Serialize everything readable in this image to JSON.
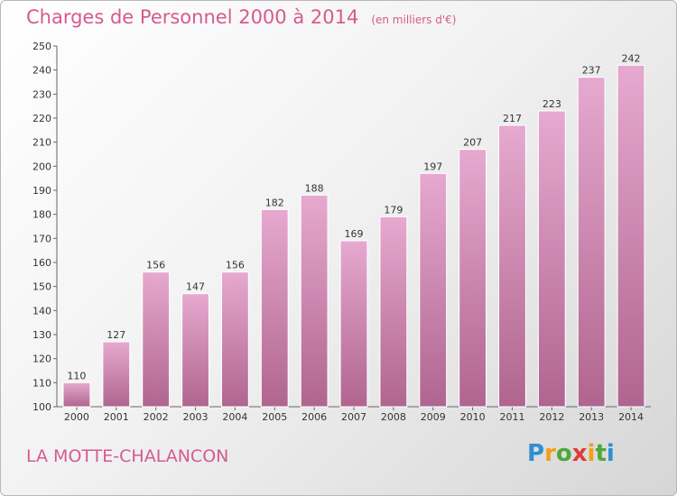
{
  "title": "Charges de Personnel 2000 à 2014",
  "unit": "(en milliers d'€)",
  "commune": "LA MOTTE-CHALANCON",
  "logo": {
    "letters": [
      "P",
      "r",
      "o",
      "x",
      "i",
      "t",
      "i"
    ],
    "colors": [
      "#2f8fd0",
      "#f2a01c",
      "#4fa83a",
      "#e03a3a",
      "#f2a01c",
      "#4fa83a",
      "#2f8fd0"
    ]
  },
  "colors": {
    "bar_top": "#e6a9cf",
    "bar_bottom": "#b0658f",
    "accent": "#d65a8f"
  },
  "chart_data": {
    "type": "bar",
    "categories": [
      "2000",
      "2001",
      "2002",
      "2003",
      "2004",
      "2005",
      "2006",
      "2007",
      "2008",
      "2009",
      "2010",
      "2011",
      "2012",
      "2013",
      "2014"
    ],
    "values": [
      110,
      127,
      156,
      147,
      156,
      182,
      188,
      169,
      179,
      197,
      207,
      217,
      223,
      237,
      242
    ],
    "title": "Charges de Personnel 2000 à 2014",
    "xlabel": "",
    "ylabel": "",
    "ylim": [
      100,
      250
    ],
    "yticks": [
      100,
      110,
      120,
      130,
      140,
      150,
      160,
      170,
      180,
      190,
      200,
      210,
      220,
      230,
      240,
      250
    ],
    "grid": false
  }
}
